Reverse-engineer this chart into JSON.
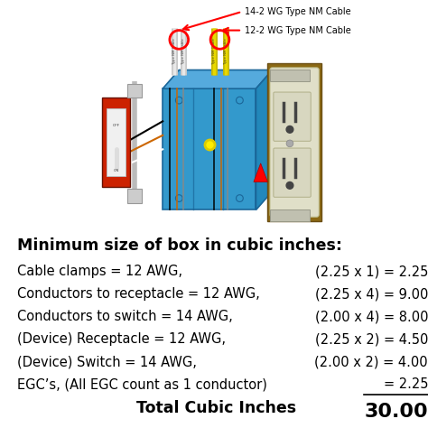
{
  "bg_color": "#ffffff",
  "title": "Minimum size of box in cubic inches:",
  "title_fontsize": 12.5,
  "title_fontweight": "bold",
  "title_color": "#000000",
  "rows": [
    {
      "left": "Cable clamps = 12 AWG,",
      "right": "(2.25 x 1) = 2.25",
      "underline": false
    },
    {
      "left": "Conductors to receptacle = 12 AWG,",
      "right": "(2.25 x 4) = 9.00",
      "underline": false
    },
    {
      "left": "Conductors to switch = 14 AWG,",
      "right": "(2.00 x 4) = 8.00",
      "underline": false
    },
    {
      "left": "(Device) Receptacle = 12 AWG,",
      "right": "(2.25 x 2) = 4.50",
      "underline": false
    },
    {
      "left": "(Device) Switch = 14 AWG,",
      "right": "(2.00 x 2) = 4.00",
      "underline": false
    },
    {
      "left": "EGC’s, (All EGC count as 1 conductor)",
      "right": "= 2.25",
      "underline": true
    }
  ],
  "total_left": "Total Cubic Inches",
  "total_right": "30.00",
  "text_fontsize": 10.5,
  "total_fontsize": 12.5,
  "text_color": "#000000",
  "diagram_arrow1_text": "14-2 WG Type NM Cable",
  "diagram_arrow2_text": "12-2 WG Type NM Cable",
  "box_blue": "#3399cc",
  "box_blue_top": "#55aadd",
  "box_blue_right": "#2288bb",
  "box_blue_dark": "#1a6699",
  "cable_white": "#d8d8d8",
  "cable_yellow": "#e8cc00",
  "switch_red": "#cc2200",
  "switch_plate": "#eeeeee",
  "rec_cream": "#e0dfc8",
  "bracket_grey": "#aaaaaa"
}
